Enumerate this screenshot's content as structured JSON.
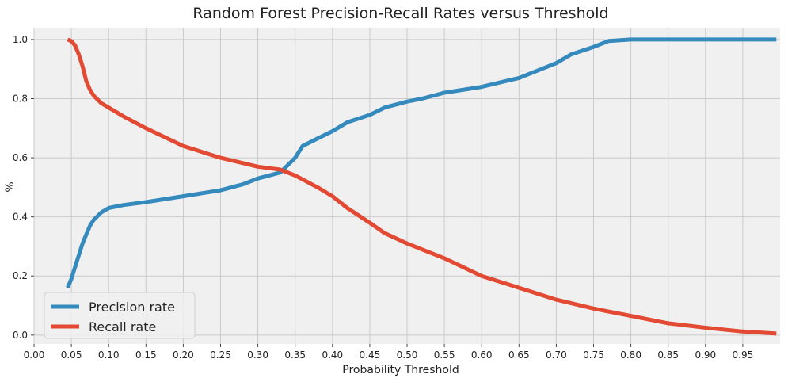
{
  "chart_data": {
    "type": "line",
    "title": "Random Forest Precision-Recall Rates versus Threshold",
    "xlabel": "Probability Threshold",
    "ylabel": "%",
    "xlim": [
      0.0,
      1.0
    ],
    "ylim": [
      -0.03,
      1.04
    ],
    "grid": true,
    "legend_position": "bottom-left",
    "x_ticks": [
      0.0,
      0.05,
      0.1,
      0.15,
      0.2,
      0.25,
      0.3,
      0.35,
      0.4,
      0.45,
      0.5,
      0.55,
      0.6,
      0.65,
      0.7,
      0.75,
      0.8,
      0.85,
      0.9,
      0.95
    ],
    "x_tick_labels": [
      "0.00",
      "0.05",
      "0.10",
      "0.15",
      "0.20",
      "0.25",
      "0.30",
      "0.35",
      "0.40",
      "0.45",
      "0.50",
      "0.55",
      "0.60",
      "0.65",
      "0.70",
      "0.75",
      "0.80",
      "0.85",
      "0.90",
      "0.95"
    ],
    "y_ticks": [
      0.0,
      0.2,
      0.4,
      0.6,
      0.8,
      1.0
    ],
    "y_tick_labels": [
      "0.0",
      "0.2",
      "0.4",
      "0.6",
      "0.8",
      "1.0"
    ],
    "series": [
      {
        "name": "Precision rate",
        "color": "#348ABD",
        "x": [
          0.045,
          0.05,
          0.055,
          0.06,
          0.065,
          0.07,
          0.075,
          0.08,
          0.09,
          0.1,
          0.12,
          0.15,
          0.2,
          0.25,
          0.28,
          0.3,
          0.33,
          0.35,
          0.36,
          0.38,
          0.4,
          0.42,
          0.45,
          0.47,
          0.5,
          0.52,
          0.55,
          0.6,
          0.65,
          0.7,
          0.72,
          0.75,
          0.77,
          0.8,
          0.85,
          0.9,
          0.95,
          0.995
        ],
        "y": [
          0.16,
          0.19,
          0.23,
          0.27,
          0.31,
          0.34,
          0.37,
          0.39,
          0.415,
          0.43,
          0.44,
          0.45,
          0.47,
          0.49,
          0.51,
          0.53,
          0.55,
          0.6,
          0.64,
          0.665,
          0.69,
          0.72,
          0.745,
          0.77,
          0.79,
          0.8,
          0.82,
          0.84,
          0.87,
          0.92,
          0.95,
          0.975,
          0.995,
          1.0,
          1.0,
          1.0,
          1.0,
          1.0
        ]
      },
      {
        "name": "Recall rate",
        "color": "#E24A33",
        "x": [
          0.045,
          0.05,
          0.055,
          0.06,
          0.065,
          0.07,
          0.075,
          0.08,
          0.09,
          0.1,
          0.12,
          0.15,
          0.2,
          0.25,
          0.3,
          0.33,
          0.35,
          0.38,
          0.4,
          0.42,
          0.45,
          0.47,
          0.5,
          0.55,
          0.6,
          0.65,
          0.7,
          0.75,
          0.8,
          0.85,
          0.9,
          0.95,
          0.995
        ],
        "y": [
          1.0,
          0.995,
          0.98,
          0.95,
          0.91,
          0.86,
          0.83,
          0.81,
          0.785,
          0.77,
          0.74,
          0.7,
          0.64,
          0.6,
          0.57,
          0.56,
          0.54,
          0.5,
          0.47,
          0.43,
          0.38,
          0.345,
          0.31,
          0.26,
          0.2,
          0.16,
          0.12,
          0.09,
          0.065,
          0.04,
          0.025,
          0.012,
          0.005
        ]
      }
    ]
  }
}
